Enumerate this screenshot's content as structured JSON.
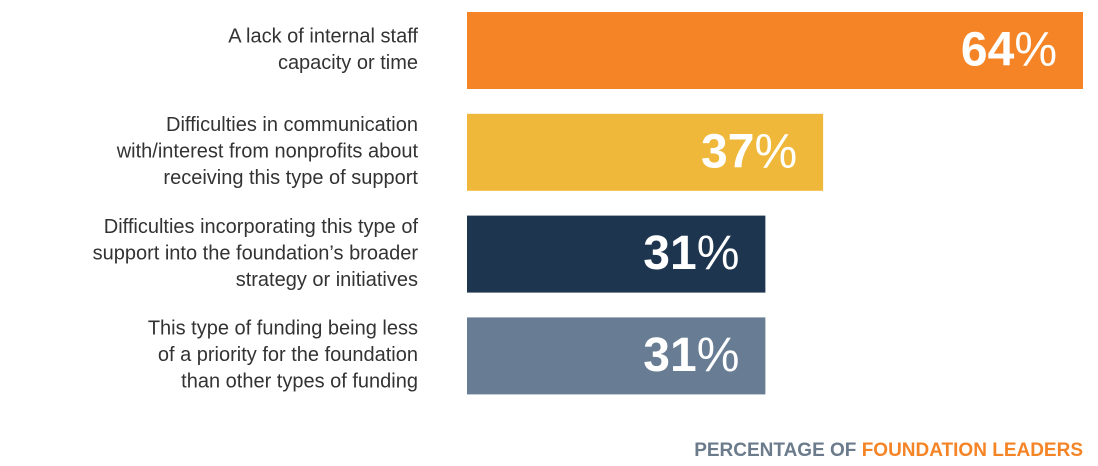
{
  "chart_data": {
    "type": "barh",
    "categories": [
      [
        "A lack of internal staff",
        "capacity or time"
      ],
      [
        "Difficulties in communication",
        "with/interest from nonprofits about",
        "receiving this type of support"
      ],
      [
        "Difficulties incorporating this type of",
        "support into the foundation’s broader",
        "strategy or initiatives"
      ],
      [
        "This type of funding being less",
        "of a priority for the foundation",
        "than other types of funding"
      ]
    ],
    "values": [
      64,
      37,
      31,
      31
    ],
    "value_labels": [
      "64%",
      "37%",
      "31%",
      "31%"
    ],
    "colors": [
      "#f58426",
      "#f0b83a",
      "#1e3550",
      "#687d93"
    ],
    "x_label_parts": [
      {
        "text": "PERCENTAGE OF ",
        "color": "#6b7b8c"
      },
      {
        "text": "FOUNDATION LEADERS",
        "color": "#f58426"
      }
    ]
  }
}
